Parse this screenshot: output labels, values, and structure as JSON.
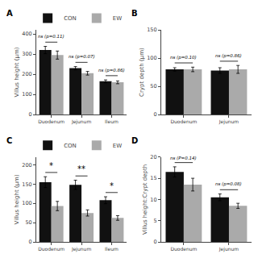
{
  "chart_data": [
    {
      "type": "bar",
      "title": "A",
      "ylabel": "Villus height (μm)",
      "categories": [
        "Duodenum",
        "Jejunum",
        "Ileum"
      ],
      "series": [
        {
          "name": "CON",
          "color": "#111111",
          "values": [
            320,
            230,
            165
          ],
          "errors": [
            18,
            8,
            7
          ]
        },
        {
          "name": "EW",
          "color": "#aaaaaa",
          "values": [
            295,
            205,
            160
          ],
          "errors": [
            20,
            9,
            7
          ]
        }
      ],
      "annotations": [
        "ns (p=0.11)",
        "ns (p=0.07)",
        "ns (p=0.86)"
      ],
      "ylim": [
        0,
        420
      ],
      "yticks": [
        0,
        100,
        200,
        300,
        400
      ],
      "grid": false,
      "legend": "upper right"
    },
    {
      "type": "bar",
      "title": "B",
      "ylabel": "Crypt depth (μm)",
      "categories": [
        "Duodenum",
        "Jejunum"
      ],
      "series": [
        {
          "name": "CON",
          "color": "#111111",
          "values": [
            80,
            78
          ],
          "errors": [
            3,
            5
          ]
        },
        {
          "name": "EW",
          "color": "#aaaaaa",
          "values": [
            80,
            80
          ],
          "errors": [
            4,
            7
          ]
        }
      ],
      "annotations": [
        "ns (p=0.10)",
        "ns (p=0.86)"
      ],
      "ylim": [
        0,
        150
      ],
      "yticks": [
        0,
        50,
        100,
        150
      ],
      "grid": false
    },
    {
      "type": "bar",
      "title": "C",
      "ylabel": "Villus height (μm)",
      "categories": [
        "Duodenum",
        "Jejunum",
        "Ileum"
      ],
      "series": [
        {
          "name": "CON",
          "color": "#111111",
          "values": [
            155,
            148,
            108
          ],
          "errors": [
            14,
            12,
            9
          ]
        },
        {
          "name": "EW",
          "color": "#aaaaaa",
          "values": [
            93,
            75,
            62
          ],
          "errors": [
            12,
            8,
            6
          ]
        }
      ],
      "annotations": [
        "*",
        "**",
        "*"
      ],
      "ylim": [
        0,
        220
      ],
      "yticks": [
        0,
        50,
        100,
        150,
        200
      ],
      "grid": false,
      "legend": "upper right"
    },
    {
      "type": "bar",
      "title": "D",
      "ylabel": "Villus height:Crypt depth",
      "categories": [
        "Duodenum",
        "Jejunum"
      ],
      "series": [
        {
          "name": "CON",
          "color": "#111111",
          "values": [
            16.5,
            10.5
          ],
          "errors": [
            1.2,
            0.8
          ]
        },
        {
          "name": "EW",
          "color": "#aaaaaa",
          "values": [
            13.5,
            8.5
          ],
          "errors": [
            1.5,
            0.6
          ]
        }
      ],
      "annotations": [
        "ns (P=0.14)",
        "ns (p=0.08)"
      ],
      "ylim": [
        0,
        20
      ],
      "yticks": [
        0,
        5,
        10,
        15,
        20
      ],
      "grid": false
    }
  ]
}
